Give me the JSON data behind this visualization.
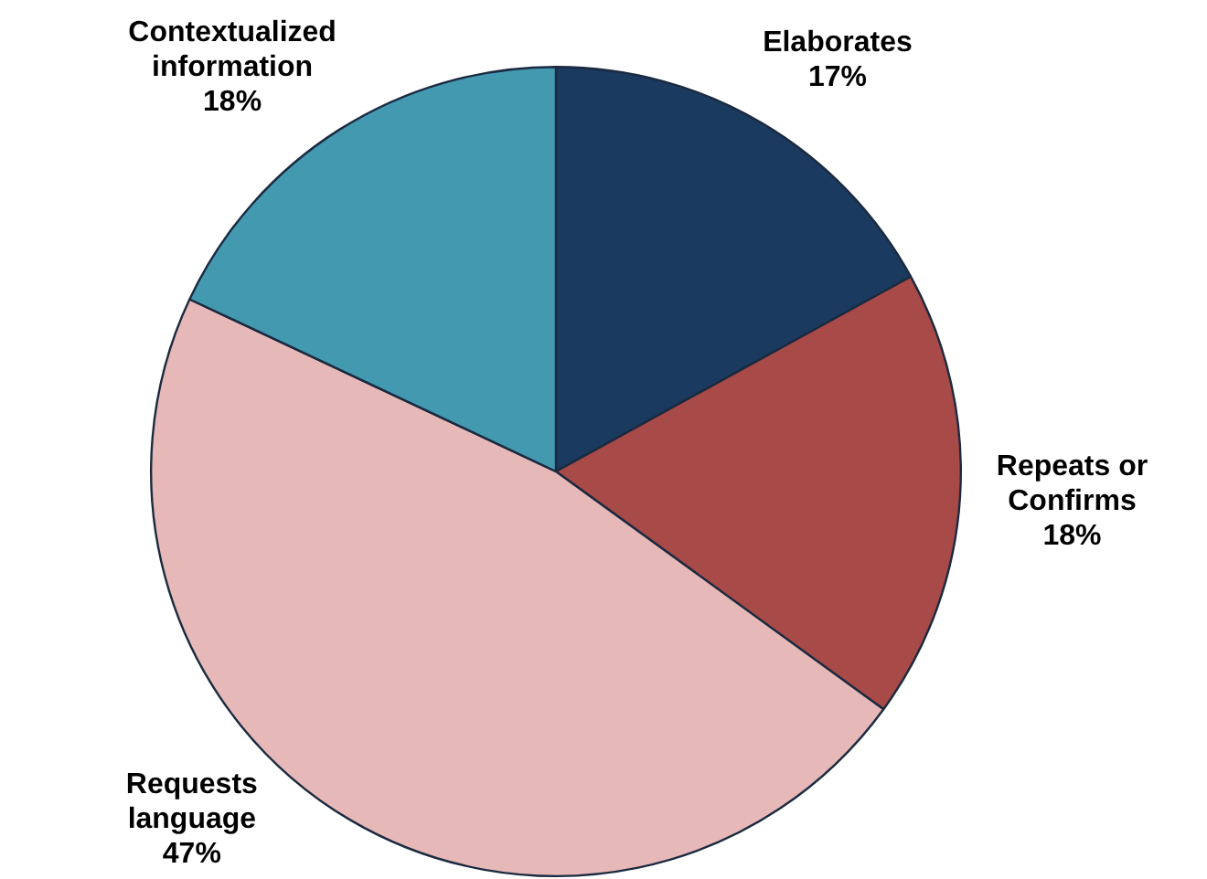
{
  "chart_data": {
    "type": "pie",
    "categories": [
      "Elaborates",
      "Repeats or Confirms",
      "Requests language",
      "Contextualized information"
    ],
    "values": [
      17,
      18,
      47,
      18
    ],
    "colors": [
      "#1b3a5f",
      "#a84a47",
      "#e6b8b7",
      "#4299b0"
    ],
    "value_labels": [
      "17%",
      "18%",
      "47%",
      "18%"
    ]
  }
}
